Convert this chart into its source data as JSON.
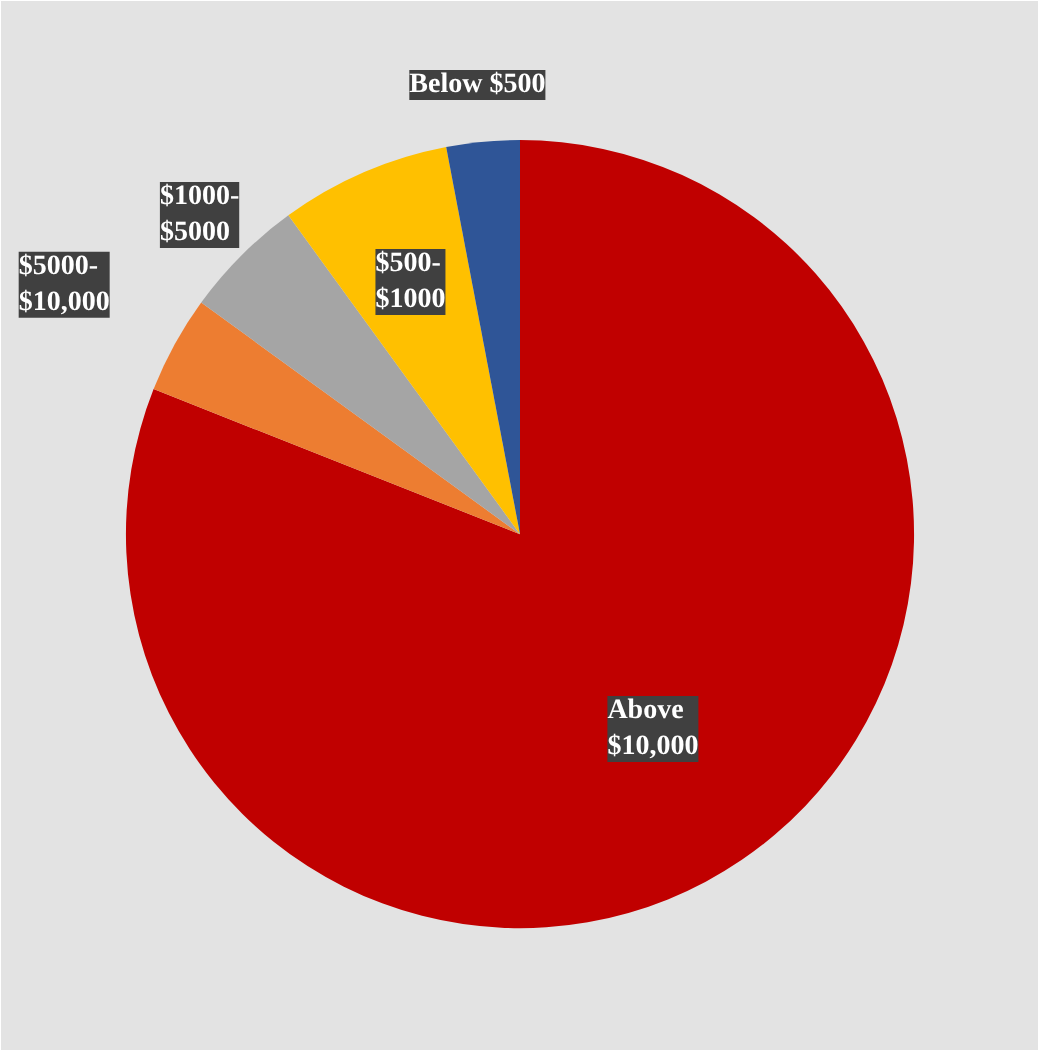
{
  "chart_data": {
    "type": "pie",
    "categories": [
      "Above\n$10,000",
      "$5000-\n$10,000",
      "$1000-\n$5000",
      "$500-\n$1000",
      "Below $500"
    ],
    "values": [
      81,
      4,
      5,
      7,
      3
    ],
    "colors": [
      "#c00000",
      "#ed7d31",
      "#a5a5a5",
      "#ffc000",
      "#2f5597"
    ]
  }
}
